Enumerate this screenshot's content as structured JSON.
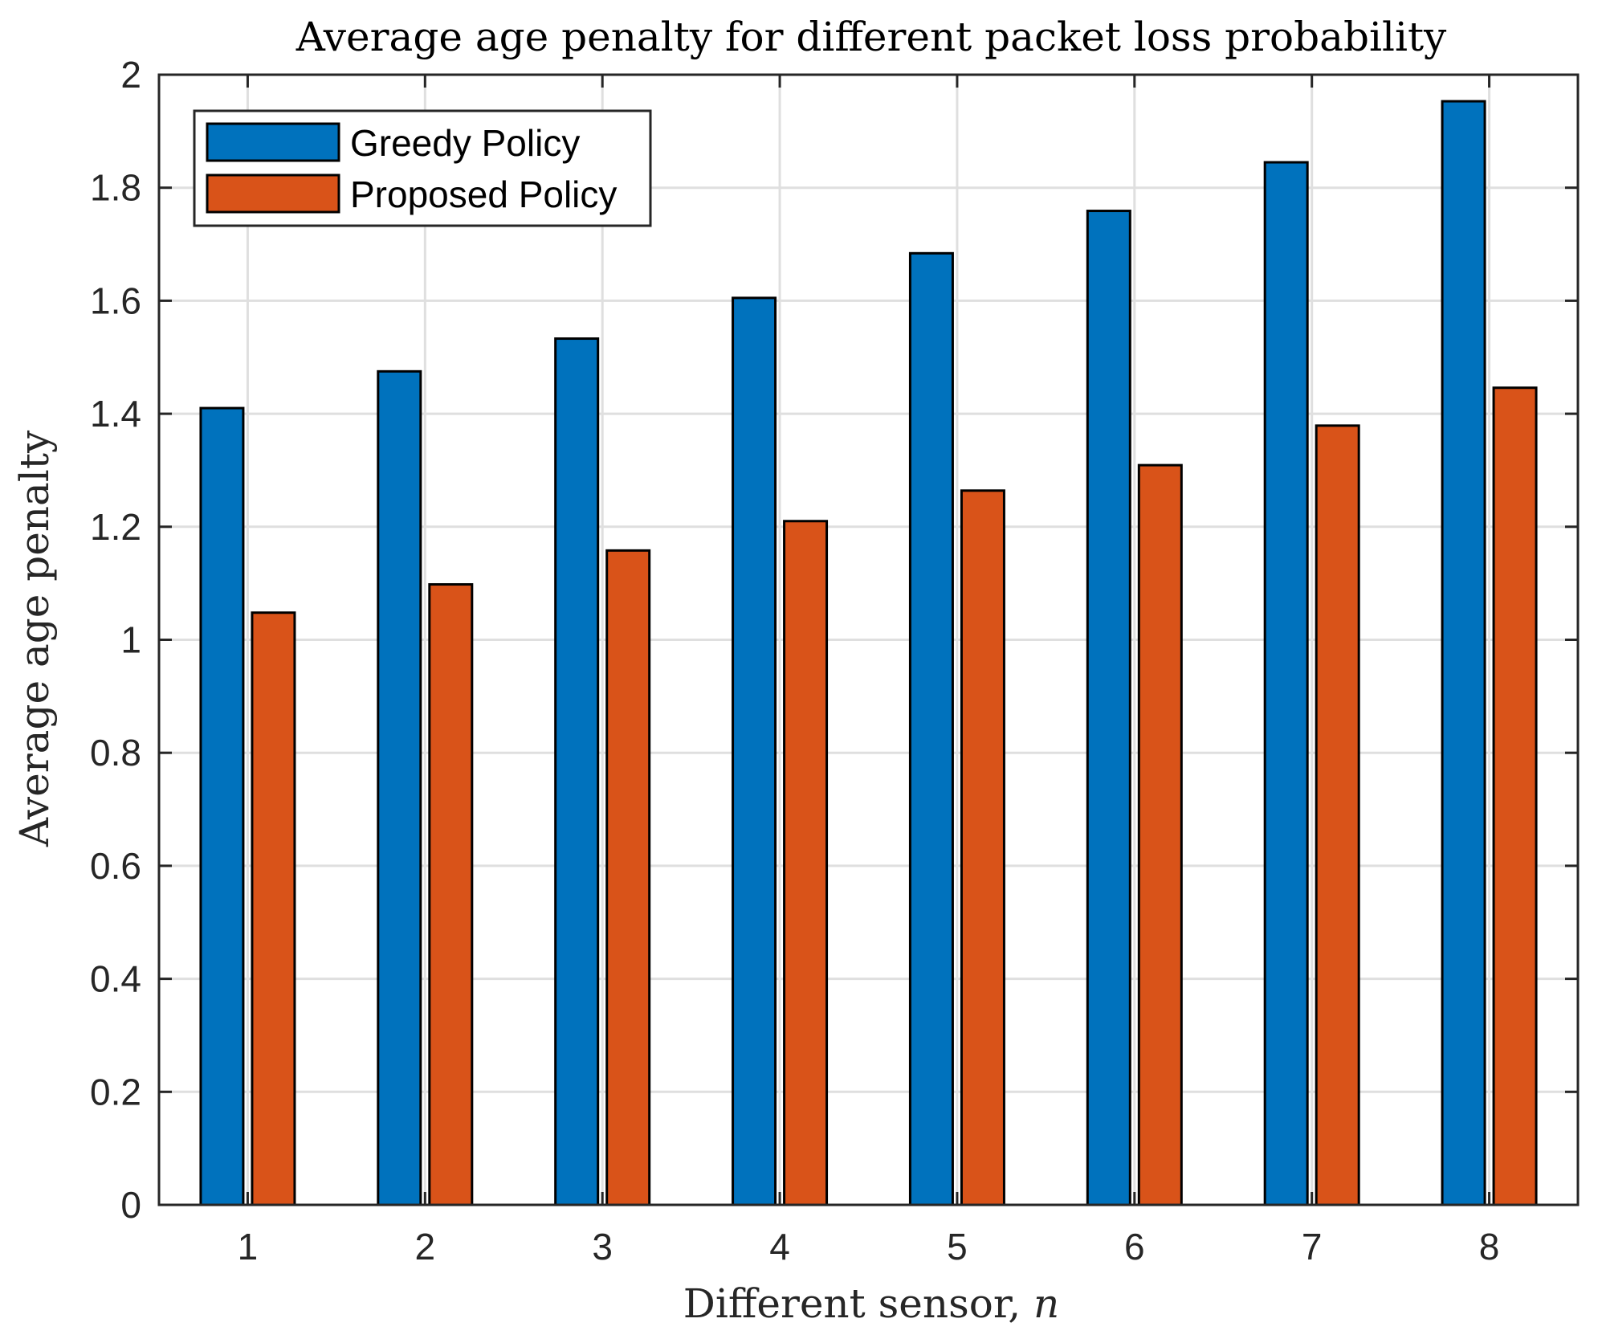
{
  "chart_data": {
    "type": "bar",
    "title": "Average age penalty for different packet loss probability",
    "xlabel": "Different sensor, n",
    "ylabel": "Average age penalty",
    "categories": [
      "1",
      "2",
      "3",
      "4",
      "5",
      "6",
      "7",
      "8"
    ],
    "series": [
      {
        "name": "Greedy Policy",
        "color": "#0072BD",
        "values": [
          1.41,
          1.475,
          1.533,
          1.605,
          1.684,
          1.759,
          1.845,
          1.953
        ]
      },
      {
        "name": "Proposed Policy",
        "color": "#D95319",
        "values": [
          1.048,
          1.098,
          1.158,
          1.21,
          1.264,
          1.309,
          1.379,
          1.446
        ]
      }
    ],
    "ylim": [
      0,
      2
    ],
    "yticks": [
      "0",
      "0.2",
      "0.4",
      "0.6",
      "0.8",
      "1",
      "1.2",
      "1.4",
      "1.6",
      "1.8",
      "2"
    ],
    "grid": true,
    "legend_position": "top-left"
  }
}
